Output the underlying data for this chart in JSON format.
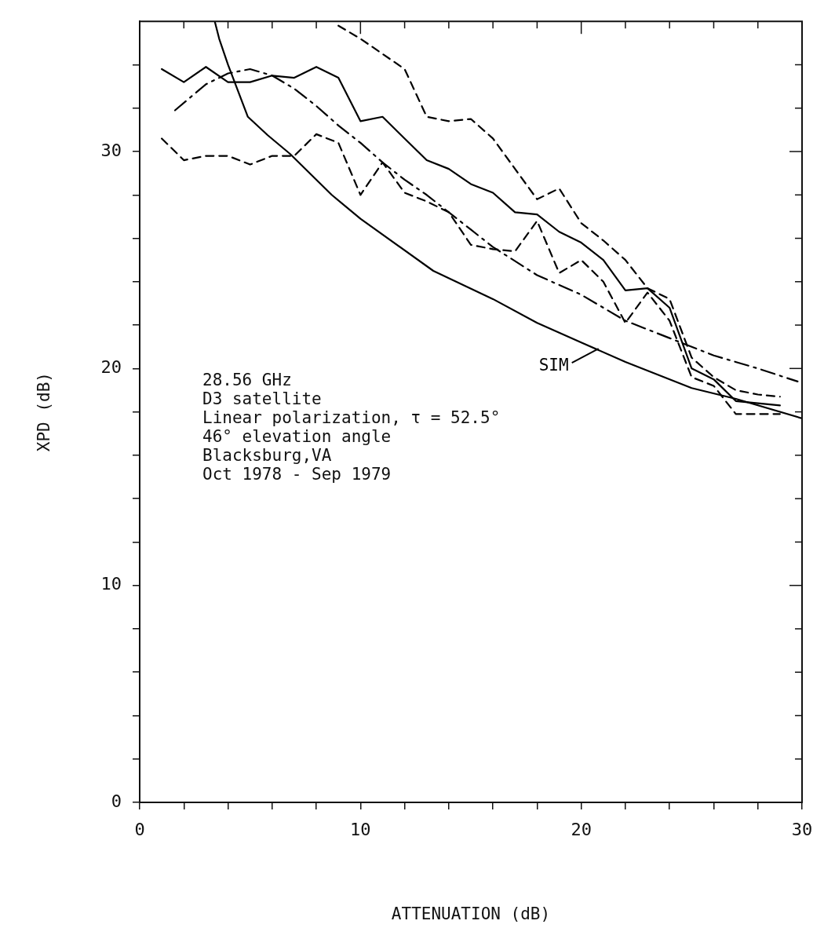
{
  "chart_data": {
    "type": "line",
    "xlabel": "ATTENUATION (dB)",
    "ylabel": "XPD (dB)",
    "xlim": [
      0,
      30
    ],
    "ylim": [
      0,
      36
    ],
    "xticks": [
      0,
      {
        "value": 2,
        "label": null
      },
      {
        "value": 4,
        "label": null
      },
      {
        "value": 6,
        "label": null
      },
      {
        "value": 8,
        "label": null
      },
      10,
      {
        "value": 12,
        "label": null
      },
      {
        "value": 14,
        "label": null
      },
      {
        "value": 16,
        "label": null
      },
      {
        "value": 18,
        "label": null
      },
      20,
      {
        "value": 22,
        "label": null
      },
      {
        "value": 24,
        "label": null
      },
      {
        "value": 26,
        "label": null
      },
      {
        "value": 28,
        "label": null
      },
      30
    ],
    "yticks": [
      0,
      {
        "value": 2,
        "label": null
      },
      {
        "value": 4,
        "label": null
      },
      {
        "value": 6,
        "label": null
      },
      {
        "value": 8,
        "label": null
      },
      10,
      {
        "value": 12,
        "label": null
      },
      {
        "value": 14,
        "label": null
      },
      {
        "value": 16,
        "label": null
      },
      {
        "value": 18,
        "label": null
      },
      20,
      {
        "value": 22,
        "label": null
      },
      {
        "value": 24,
        "label": null
      },
      {
        "value": 26,
        "label": null
      },
      {
        "value": 28,
        "label": null
      },
      30,
      {
        "value": 32,
        "label": null
      },
      {
        "value": 34,
        "label": null
      }
    ],
    "grid": false,
    "marker": "none",
    "series": [
      {
        "color": "#000000",
        "line_style": "solid",
        "x": [
          1,
          2,
          3,
          4,
          5,
          6,
          7,
          8,
          9,
          10,
          11,
          12,
          13,
          14,
          15,
          16,
          17,
          18,
          19,
          20,
          21,
          22,
          23,
          24,
          25,
          26,
          27,
          28,
          29
        ],
        "values": [
          33.8,
          33.2,
          33.9,
          33.2,
          33.2,
          33.5,
          33.4,
          33.9,
          33.4,
          31.4,
          31.6,
          30.6,
          29.6,
          29.2,
          28.5,
          28.1,
          27.2,
          27.1,
          26.3,
          25.8,
          25.0,
          23.6,
          23.7,
          22.8,
          20.0,
          19.5,
          18.5,
          18.4,
          18.3
        ]
      },
      {
        "color": "#000000",
        "line_style": "dashed",
        "x": [
          1,
          2,
          3,
          4,
          5,
          6,
          7,
          8,
          9,
          10,
          11,
          12,
          13,
          14,
          15,
          16,
          17,
          18,
          19,
          20,
          21,
          22,
          23,
          24,
          25,
          26,
          27,
          28,
          29
        ],
        "values": [
          30.6,
          29.6,
          29.8,
          29.8,
          29.4,
          29.8,
          29.8,
          30.8,
          30.4,
          28.0,
          29.5,
          28.1,
          27.7,
          27.2,
          25.7,
          25.5,
          25.4,
          26.8,
          24.4,
          25.0,
          24.0,
          22.1,
          23.5,
          22.2,
          19.6,
          19.2,
          17.9,
          17.9,
          17.9
        ]
      },
      {
        "color": "#000000",
        "line_style": "dashed",
        "x": [
          9,
          10,
          11,
          12,
          13,
          14,
          15,
          16,
          17,
          18,
          19,
          20,
          21,
          22,
          23,
          24,
          25,
          26,
          27,
          28,
          29
        ],
        "values": [
          35.8,
          35.2,
          34.5,
          33.8,
          31.6,
          31.4,
          31.5,
          30.6,
          29.2,
          27.8,
          28.3,
          26.7,
          25.9,
          25.0,
          23.7,
          23.2,
          20.5,
          19.6,
          19.0,
          18.8,
          18.7
        ]
      },
      {
        "color": "#000000",
        "line_style": "dashdot",
        "x": [
          1.6,
          3,
          4,
          5,
          6,
          7,
          8,
          9,
          10,
          11,
          12,
          13,
          14,
          15,
          16,
          18,
          20,
          22,
          24,
          26,
          28,
          29.8
        ],
        "values": [
          31.9,
          33.1,
          33.6,
          33.8,
          33.5,
          32.9,
          32.1,
          31.2,
          30.4,
          29.5,
          28.7,
          28.0,
          27.2,
          26.4,
          25.6,
          24.3,
          23.4,
          22.2,
          21.4,
          20.6,
          20.0,
          19.4
        ]
      },
      {
        "name": "SIM",
        "color": "#000000",
        "line_style": "solid",
        "x": [
          3.4,
          3.6,
          4.0,
          4.9,
          5.8,
          6.8,
          8.7,
          10,
          13.3,
          16,
          18,
          20,
          22,
          25,
          27,
          30
        ],
        "values": [
          36,
          35.2,
          34.0,
          31.6,
          30.75,
          29.9,
          28.0,
          26.9,
          24.5,
          23.2,
          22.1,
          21.2,
          20.3,
          19.1,
          18.6,
          17.7
        ]
      }
    ],
    "annotations": [
      "28.56 GHz",
      "D3 satellite",
      "Linear polarization, τ = 52.5°",
      "46° elevation angle",
      "Blacksburg,VA",
      "Oct 1978 - Sep 1979"
    ]
  }
}
